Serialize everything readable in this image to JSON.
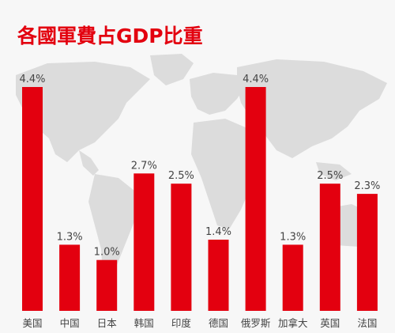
{
  "title": "各國軍費占GDP比重",
  "colors": {
    "bar": "#e3000f",
    "title": "#e3000f",
    "label": "#444444",
    "map": "#dcdcdc",
    "background": "#f7f7f7"
  },
  "chart_data": {
    "type": "bar",
    "title": "各國軍費占GDP比重",
    "categories": [
      "美国",
      "中国",
      "日本",
      "韩国",
      "印度",
      "德国",
      "俄罗斯",
      "加拿大",
      "英国",
      "法国"
    ],
    "values": [
      4.4,
      1.3,
      1.0,
      2.7,
      2.5,
      1.4,
      4.4,
      1.3,
      2.5,
      2.3
    ],
    "value_labels": [
      "4.4%",
      "1.3%",
      "1.0%",
      "2.7%",
      "2.5%",
      "1.4%",
      "4.4%",
      "1.3%",
      "2.5%",
      "2.3%"
    ],
    "unit": "%",
    "ylim": [
      0,
      4.4
    ],
    "grid": false,
    "legend": "none",
    "background": "world-map"
  }
}
